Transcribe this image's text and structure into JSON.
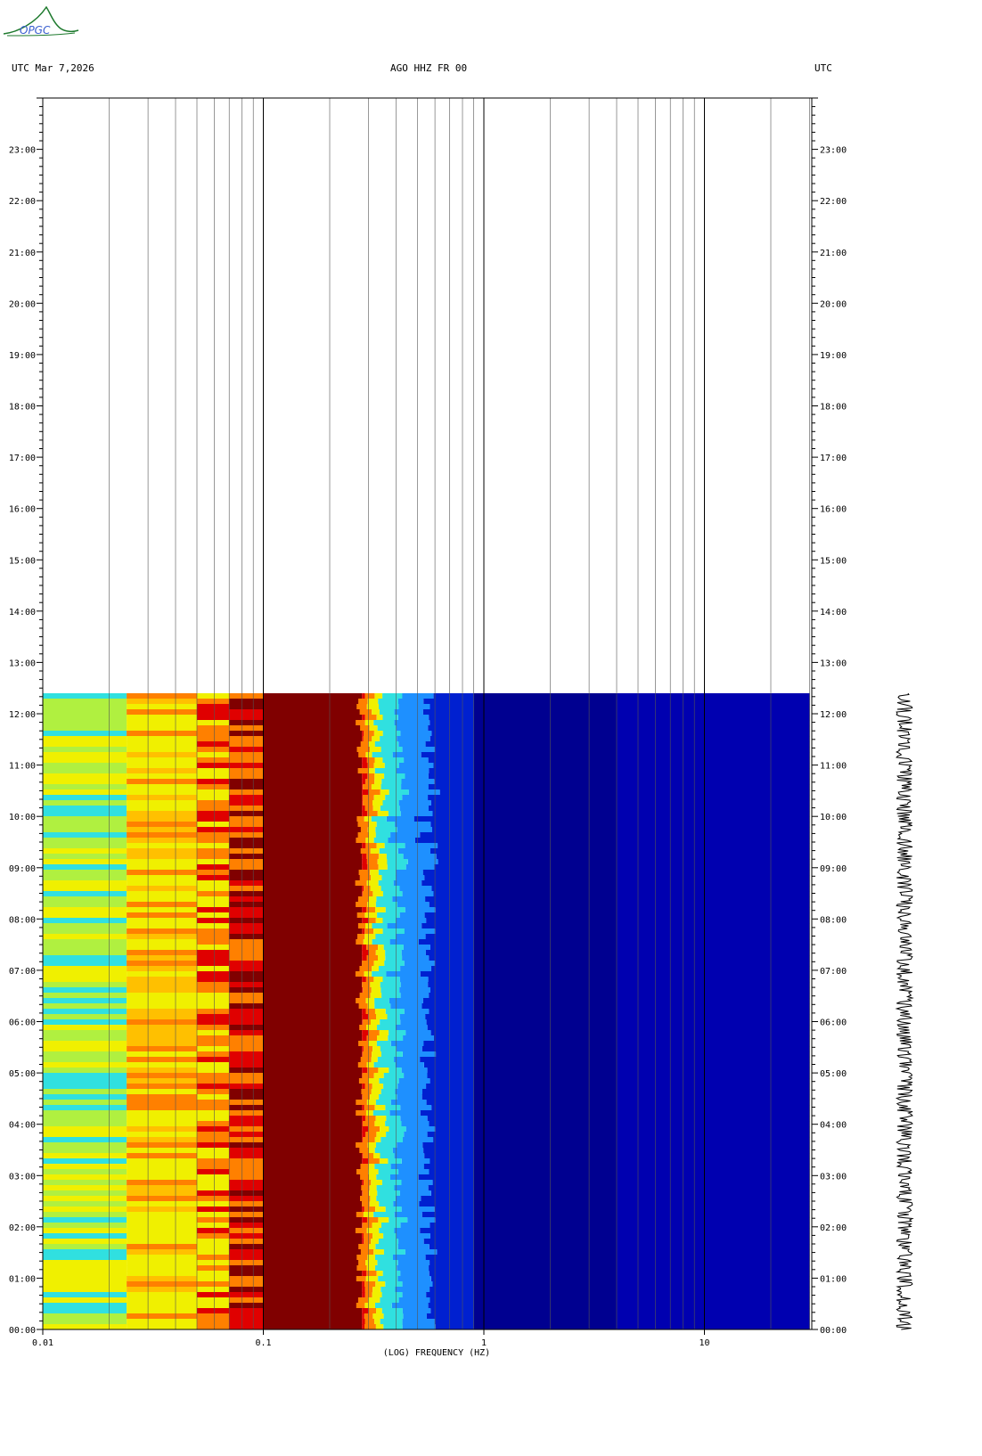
{
  "header": {
    "left_label": "UTC  Mar 7,2026",
    "center_label": "AGO HHZ FR 00",
    "right_label": "UTC"
  },
  "logo": {
    "text": "OPGC",
    "color": "#1e7a2e",
    "accent": "#3a5fcf"
  },
  "chart_data": {
    "type": "heatmap",
    "title": "AGO HHZ FR 00",
    "date": "Mar 7,2026",
    "xlabel": "(LOG) FREQUENCY (HZ)",
    "ylabel": "UTC",
    "x_scale": "log",
    "xlim": [
      0.01,
      30
    ],
    "x_ticks": [
      0.01,
      0.1,
      1,
      10
    ],
    "x_tick_labels": [
      "0.01",
      "0.1",
      "1",
      "10"
    ],
    "y_unit": "hours UTC",
    "ylim": [
      0,
      24
    ],
    "y_tick_labels": [
      "00:00",
      "01:00",
      "02:00",
      "03:00",
      "04:00",
      "05:00",
      "06:00",
      "07:00",
      "08:00",
      "09:00",
      "10:00",
      "11:00",
      "12:00",
      "13:00",
      "14:00",
      "15:00",
      "16:00",
      "17:00",
      "18:00",
      "19:00",
      "20:00",
      "21:00",
      "22:00",
      "23:00"
    ],
    "data_end_hour": 12.4,
    "frequency_bands": [
      {
        "from": 0.01,
        "to": 0.024,
        "level": "cyan-yellow"
      },
      {
        "from": 0.024,
        "to": 0.05,
        "level": "yellow-orange"
      },
      {
        "from": 0.05,
        "to": 0.07,
        "level": "orange"
      },
      {
        "from": 0.07,
        "to": 0.1,
        "level": "red"
      },
      {
        "from": 0.1,
        "to": 0.28,
        "level": "dark-red"
      },
      {
        "from": 0.28,
        "to": 0.34,
        "level": "red-yellow"
      },
      {
        "from": 0.34,
        "to": 0.6,
        "level": "cyan-blue"
      },
      {
        "from": 0.6,
        "to": 30,
        "level": "blue"
      }
    ],
    "colors": {
      "dark_red": "#800000",
      "red": "#e00000",
      "orange": "#ff8000",
      "yellow": "#f0f000",
      "cyan": "#30e0e0",
      "light_blue": "#1e90ff",
      "blue": "#0000b0",
      "dark_blue": "#000090"
    }
  }
}
